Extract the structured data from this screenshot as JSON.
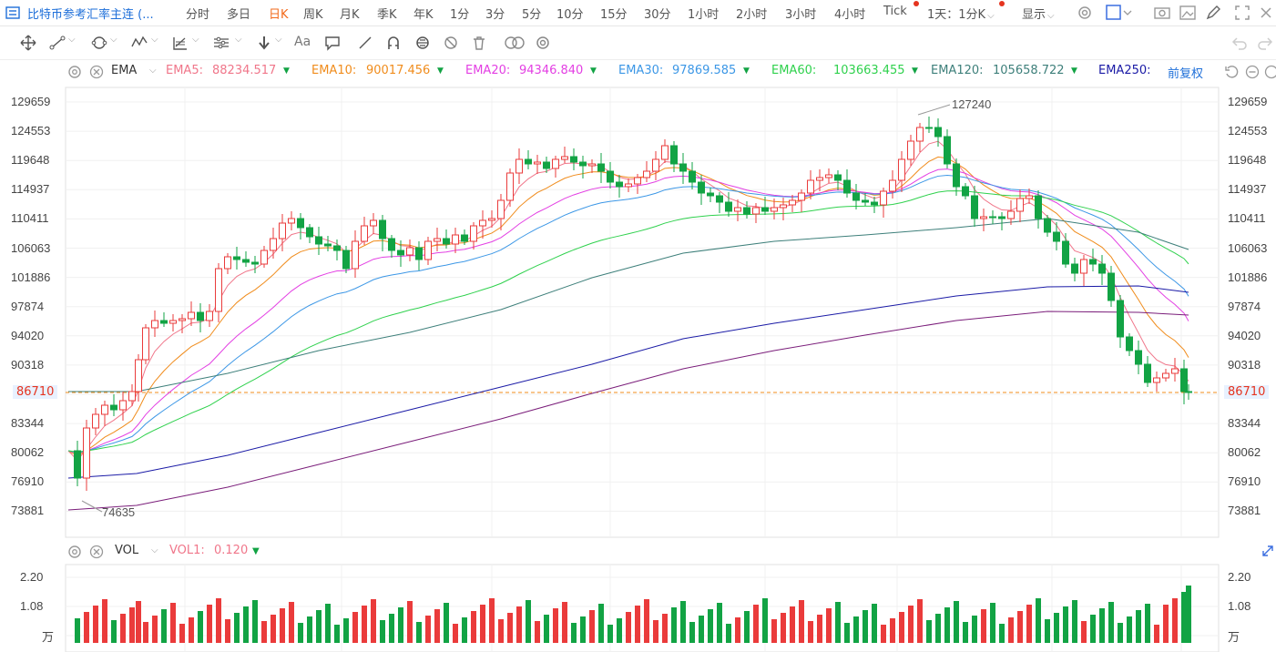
{
  "header": {
    "title": "比特币参考汇率主连 (...",
    "periods": [
      "分时",
      "多日",
      "日K",
      "周K",
      "月K",
      "季K",
      "年K",
      "1分",
      "3分",
      "5分",
      "10分",
      "15分",
      "30分",
      "1小时",
      "2小时",
      "3小时",
      "4小时",
      "Tick"
    ],
    "active_period": "日K",
    "range_label": "1天：1分K",
    "display_label": "显示"
  },
  "indicator": {
    "name": "EMA",
    "ema": [
      {
        "label": "EMA5:",
        "value": "88234.517",
        "color": "#f0768a"
      },
      {
        "label": "EMA10:",
        "value": "90017.456",
        "color": "#f08c1c"
      },
      {
        "label": "EMA20:",
        "value": "94346.840",
        "color": "#e33fe3"
      },
      {
        "label": "EMA30:",
        "value": "97869.585",
        "color": "#3c97e6"
      },
      {
        "label": "EMA60:",
        "value": "103663.455",
        "color": "#2fd14d"
      },
      {
        "label": "EMA120:",
        "value": "105658.722",
        "color": "#3d7f7a"
      },
      {
        "label": "EMA250:",
        "value": "",
        "color": "#1a1aa6"
      }
    ],
    "adjust_label": "前复权"
  },
  "price_axis": [
    "129659",
    "124553",
    "119648",
    "114937",
    "110411",
    "106063",
    "101886",
    "97874",
    "94020",
    "90318",
    "86710",
    "83344",
    "80062",
    "76910",
    "73881"
  ],
  "current_price": "86710",
  "annotations": {
    "high": "127240",
    "low": "74635"
  },
  "volume": {
    "name": "VOL",
    "vol1_label": "VOL1:",
    "vol1_value": "0.120",
    "axis": [
      "2.20",
      "1.08",
      "万"
    ]
  },
  "colors": {
    "up": "#ea3b3b",
    "down": "#12a344",
    "accent": "#f26a1b",
    "link": "#1e6fd9"
  }
}
